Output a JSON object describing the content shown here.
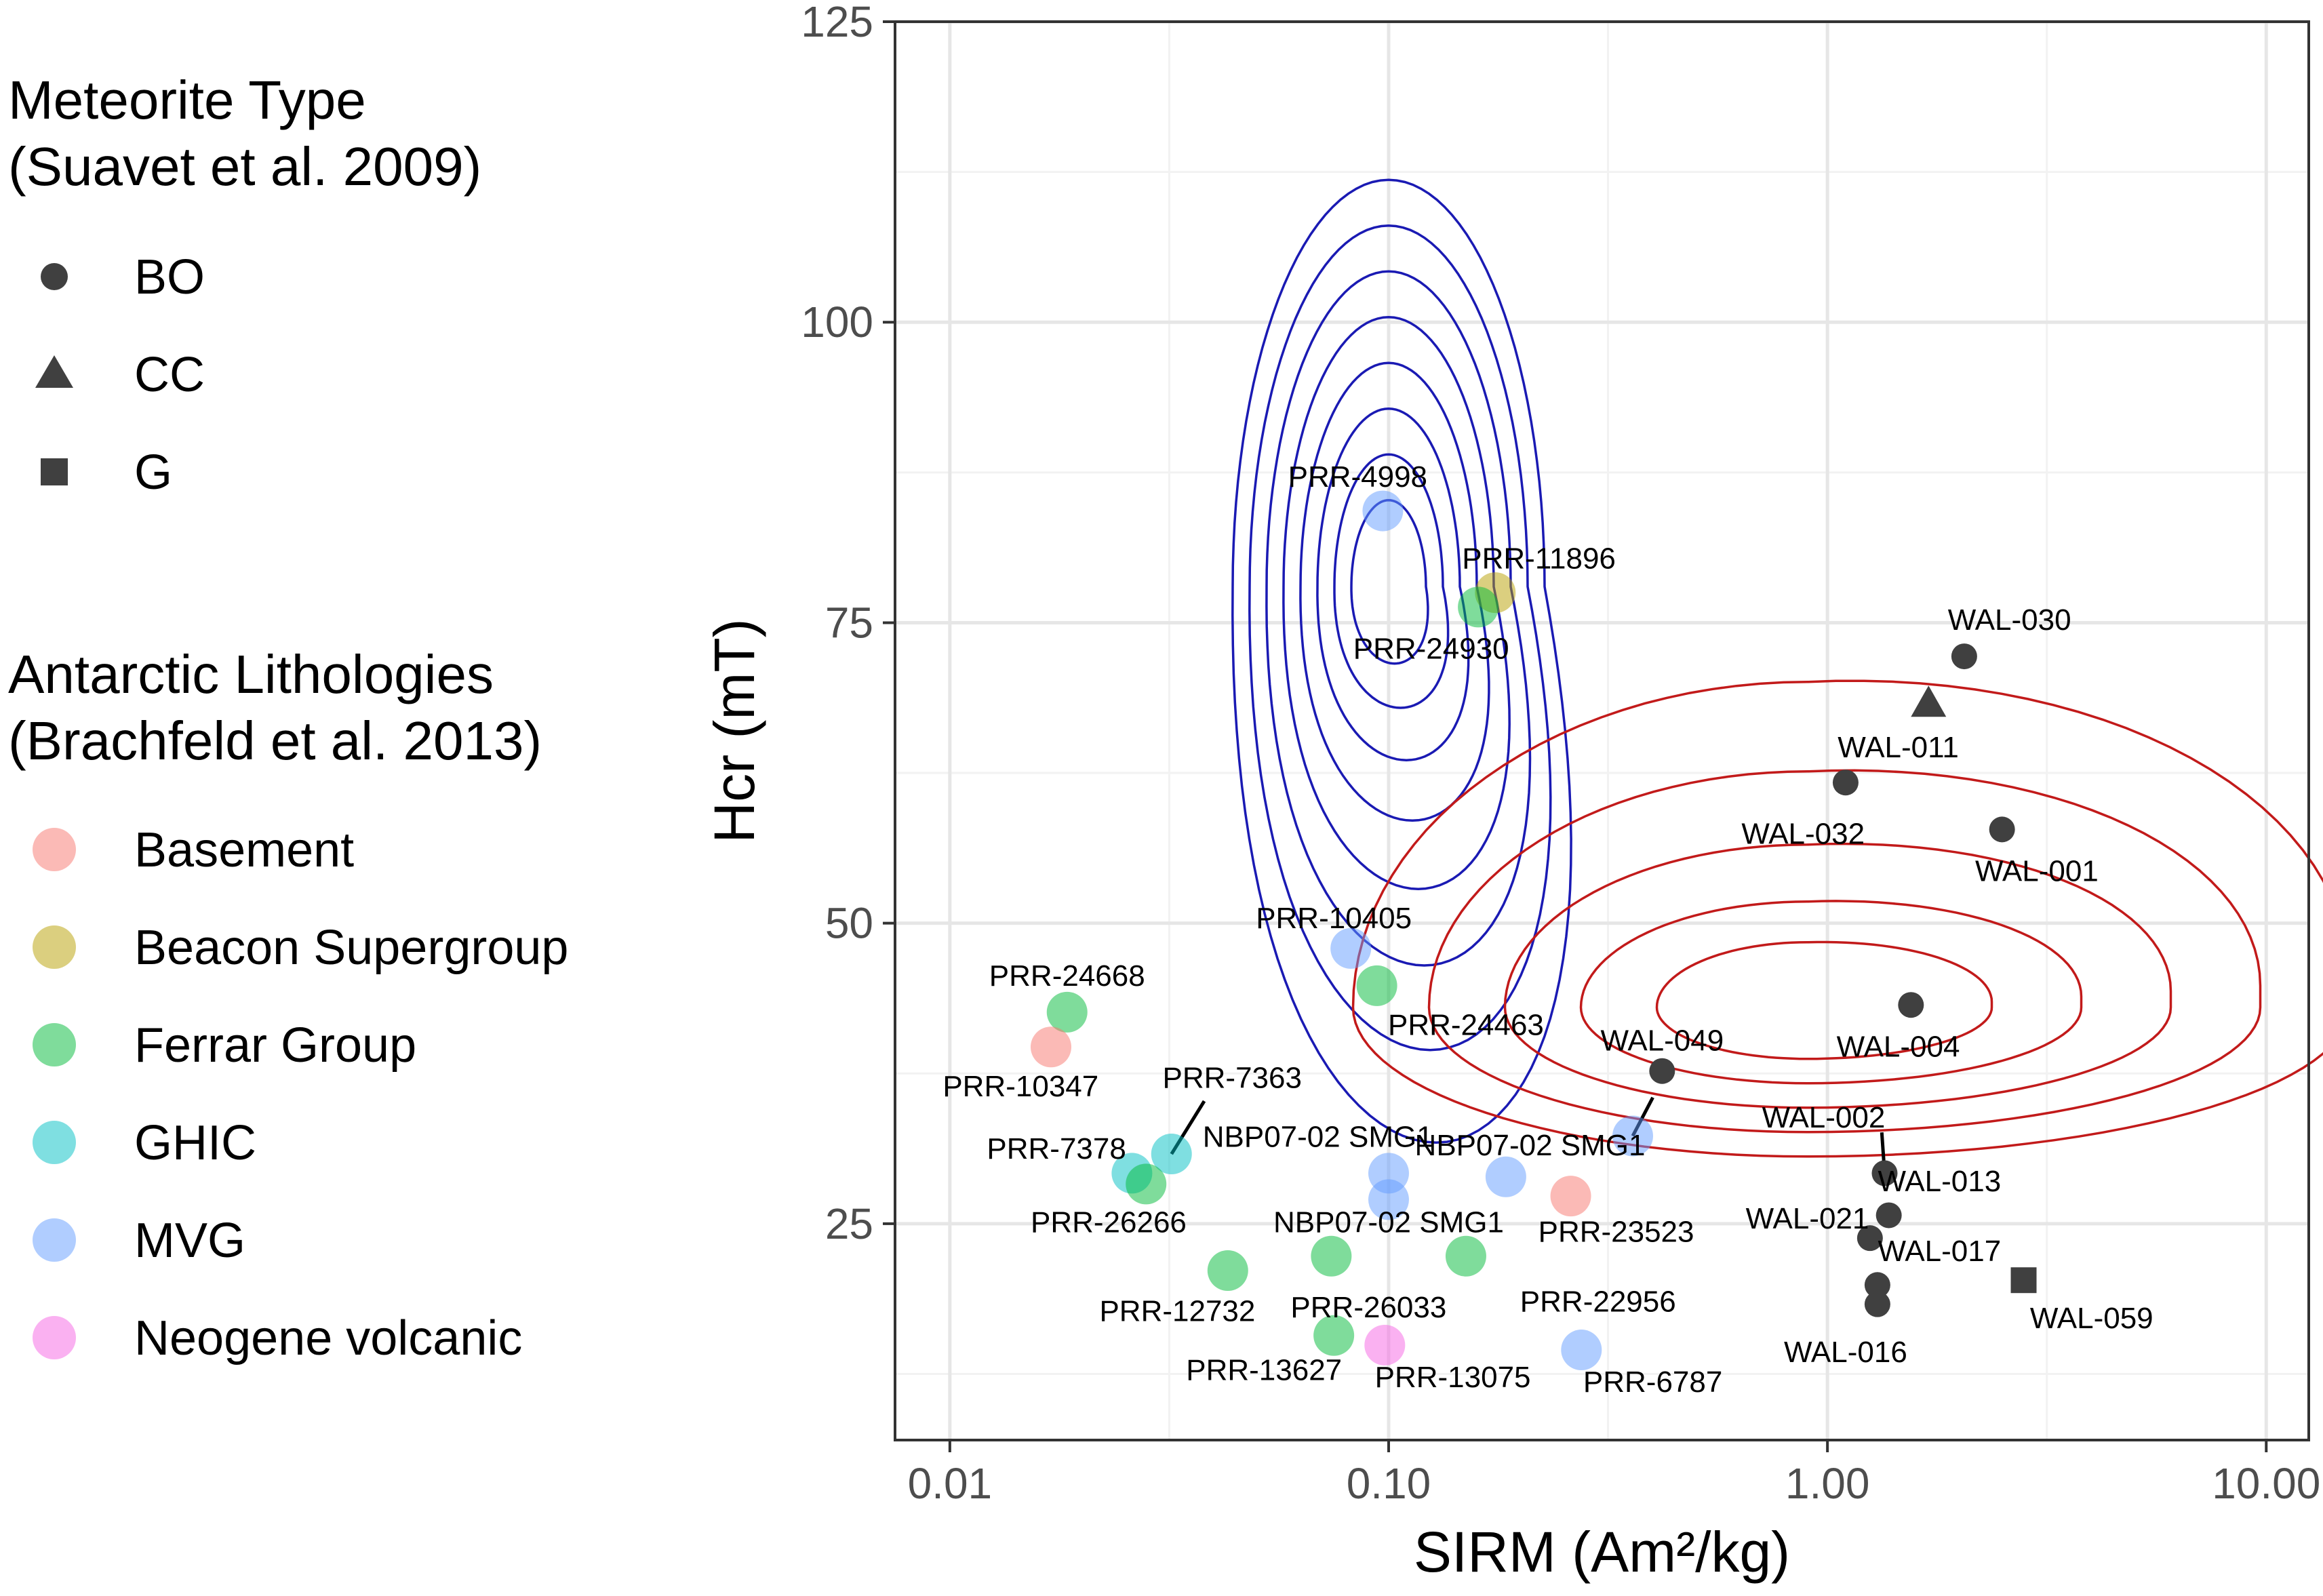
{
  "chart_data": {
    "type": "scatter",
    "xlabel": "SIRM (Am²/kg)",
    "ylabel": "Hcr (mT)",
    "x_scale": "log10",
    "xlim": [
      0.0075,
      12.5
    ],
    "ylim": [
      7,
      125
    ],
    "x_ticks": [
      0.01,
      0.1,
      1,
      10
    ],
    "x_tick_labels": [
      "0.01",
      "0.10",
      "1.00",
      "10.00"
    ],
    "y_ticks": [
      25,
      50,
      75,
      100,
      125
    ],
    "y_tick_labels": [
      "25",
      "50",
      "75",
      "100",
      "125"
    ],
    "grid": true,
    "legends": [
      {
        "title_lines": [
          "Meteorite Type",
          "(Suavet et al. 2009)"
        ],
        "items": [
          {
            "label": "BO",
            "shape": "circle"
          },
          {
            "label": "CC",
            "shape": "triangle"
          },
          {
            "label": "G",
            "shape": "square"
          }
        ]
      },
      {
        "title_lines": [
          "Antarctic Lithologies",
          "(Brachfeld et al. 2013)"
        ],
        "items": [
          {
            "label": "Basement",
            "color": "#F8766D"
          },
          {
            "label": "Beacon Supergroup",
            "color": "#B79F00"
          },
          {
            "label": "Ferrar Group",
            "color": "#00BA38"
          },
          {
            "label": "GHIC",
            "color": "#00BFC4"
          },
          {
            "label": "MVG",
            "color": "#619CFF"
          },
          {
            "label": "Neogene volcanic",
            "color": "#F564E3"
          }
        ]
      }
    ],
    "meteorites": [
      {
        "label": "WAL-030",
        "x": 2.05,
        "y": 72.2,
        "shape": "circle",
        "lx": 2.6,
        "ly": 75.3
      },
      {
        "label": "WAL-011",
        "x": 1.7,
        "y": 68.3,
        "shape": "triangle",
        "lx": 1.45,
        "ly": 64.7
      },
      {
        "label": "WAL-032",
        "x": 1.1,
        "y": 61.7,
        "shape": "circle",
        "lx": 0.88,
        "ly": 57.5
      },
      {
        "label": "WAL-001",
        "x": 2.5,
        "y": 57.8,
        "shape": "circle",
        "lx": 3.0,
        "ly": 54.4
      },
      {
        "label": "WAL-004",
        "x": 1.55,
        "y": 43.2,
        "shape": "circle",
        "lx": 1.45,
        "ly": 39.8
      },
      {
        "label": "WAL-049",
        "x": 0.42,
        "y": 37.7,
        "shape": "circle",
        "lx": 0.42,
        "ly": 40.3
      },
      {
        "label": "WAL-002",
        "x": 1.35,
        "y": 29.2,
        "shape": "circle",
        "lx": 0.98,
        "ly": 33.9,
        "lineTo": [
          1.33,
          32.6
        ]
      },
      {
        "label": "WAL-013",
        "x": 1.38,
        "y": 25.7,
        "shape": "circle",
        "lx": 1.8,
        "ly": 28.6
      },
      {
        "label": "WAL-021",
        "x": 1.25,
        "y": 23.8,
        "shape": "circle",
        "lx": 0.9,
        "ly": 25.5
      },
      {
        "label": "WAL-017",
        "x": 1.3,
        "y": 19.9,
        "shape": "circle",
        "lx": 1.8,
        "ly": 22.8
      },
      {
        "label": "WAL-016",
        "x": 1.3,
        "y": 18.3,
        "shape": "circle",
        "lx": 1.1,
        "ly": 14.4
      },
      {
        "label": "WAL-059",
        "x": 2.8,
        "y": 20.3,
        "shape": "square",
        "lx": 4.0,
        "ly": 17.2
      }
    ],
    "lithology_samples": [
      {
        "label": "PRR-4998",
        "x": 0.097,
        "y": 84.3,
        "lithology": "MVG",
        "lx": 0.085,
        "ly": 87.2
      },
      {
        "label": "PRR-11896",
        "x": 0.175,
        "y": 77.5,
        "lithology": "Beacon Supergroup",
        "lx": 0.22,
        "ly": 80.4
      },
      {
        "label": "PRR-24930",
        "x": 0.16,
        "y": 76.3,
        "lithology": "Ferrar Group",
        "lx": 0.125,
        "ly": 72.9
      },
      {
        "label": "PRR-10405",
        "x": 0.082,
        "y": 47.9,
        "lithology": "MVG",
        "lx": 0.075,
        "ly": 50.5
      },
      {
        "label": "PRR-24463",
        "x": 0.094,
        "y": 44.8,
        "lithology": "Ferrar Group",
        "lx": 0.15,
        "ly": 41.6
      },
      {
        "label": "PRR-24668",
        "x": 0.0185,
        "y": 42.6,
        "lithology": "Ferrar Group",
        "lx": 0.0185,
        "ly": 45.7
      },
      {
        "label": "PRR-10347",
        "x": 0.017,
        "y": 39.7,
        "lithology": "Basement",
        "lx": 0.0145,
        "ly": 36.5
      },
      {
        "label": "PRR-7363",
        "x": 0.032,
        "y": 30.8,
        "lithology": "GHIC",
        "lx": 0.044,
        "ly": 37.2,
        "lineTo": [
          0.038,
          35.2
        ]
      },
      {
        "label": "NBP07-02 SMG1",
        "x": 0.1,
        "y": 29.2,
        "lithology": "MVG",
        "lx": 0.069,
        "ly": 32.3
      },
      {
        "label": "NBP07-02 SMG1",
        "x": 0.36,
        "y": 32.3,
        "lithology": "MVG",
        "lx": 0.21,
        "ly": 31.6,
        "lineTo": [
          0.4,
          35.5
        ]
      },
      {
        "label": "PRR-7378",
        "x": 0.026,
        "y": 29.2,
        "lithology": "GHIC",
        "lx": 0.0175,
        "ly": 31.3
      },
      {
        "label": "PRR-26266",
        "x": 0.028,
        "y": 28.3,
        "lithology": "Ferrar Group",
        "lx": 0.023,
        "ly": 25.2
      },
      {
        "label": "",
        "x": 0.1,
        "y": 27.0,
        "lithology": "MVG"
      },
      {
        "label": "",
        "x": 0.185,
        "y": 28.9,
        "lithology": "MVG"
      },
      {
        "label": "PRR-23523",
        "x": 0.26,
        "y": 27.3,
        "lithology": "Basement",
        "lx": 0.33,
        "ly": 24.4
      },
      {
        "label": "NBP07-02 SMG1",
        "x": 0.074,
        "y": 22.3,
        "lithology": "Ferrar Group",
        "lx": 0.1,
        "ly": 25.2
      },
      {
        "label": "",
        "x": 0.15,
        "y": 22.3,
        "lithology": "Ferrar Group"
      },
      {
        "label": "PRR-12732",
        "x": 0.043,
        "y": 21.1,
        "lithology": "Ferrar Group",
        "lx": 0.033,
        "ly": 17.8
      },
      {
        "label": "PRR-26033",
        "x": 0.075,
        "y": 15.7,
        "lithology": "Ferrar Group",
        "lx": 0.09,
        "ly": 18.1
      },
      {
        "label": "PRR-22956",
        "x": 0.21,
        "y": 17.5,
        "lithology": "Ferrar Group",
        "lx": 0.3,
        "ly": 18.6,
        "noPoint": true
      },
      {
        "label": "PRR-13627",
        "x": 0.07,
        "y": 15.7,
        "lithology": "Ferrar Group",
        "lx": 0.052,
        "ly": 12.9,
        "noPoint": true
      },
      {
        "label": "PRR-13075",
        "x": 0.098,
        "y": 14.9,
        "lithology": "Neogene volcanic",
        "lx": 0.14,
        "ly": 12.3
      },
      {
        "label": "PRR-6787",
        "x": 0.275,
        "y": 14.5,
        "lithology": "MVG",
        "lx": 0.4,
        "ly": 11.9
      }
    ],
    "contour_series": [
      {
        "name": "blue density contours",
        "color": "#1a1ab3",
        "center": [
          0.1,
          78
        ],
        "levels": 8
      },
      {
        "name": "red density contours",
        "color": "#c21a1a",
        "center": [
          0.9,
          43
        ],
        "levels": 5
      }
    ]
  }
}
